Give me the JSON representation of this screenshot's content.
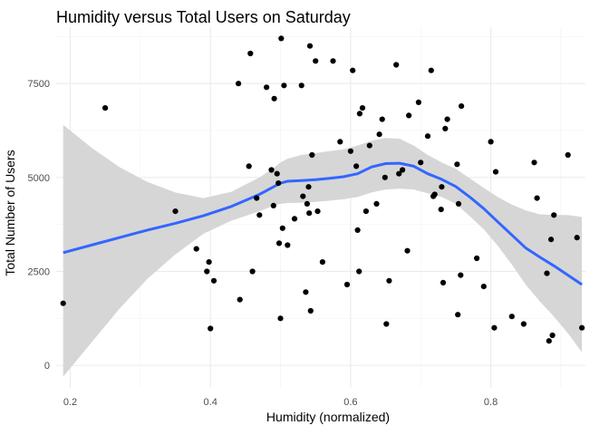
{
  "chart_data": {
    "type": "scatter",
    "title": "Humidity versus Total Users on Saturday",
    "xlabel": "Humidity (normalized)",
    "ylabel": "Total Number of Users",
    "xlim": [
      0.18,
      0.935
    ],
    "ylim": [
      -600,
      9000
    ],
    "x_ticks": [
      0.2,
      0.4,
      0.6,
      0.8
    ],
    "x_tick_labels": [
      "0.2",
      "0.4",
      "0.6",
      "0.8"
    ],
    "y_ticks": [
      0,
      2500,
      5000,
      7500
    ],
    "y_tick_labels": [
      "0",
      "2500",
      "5000",
      "7500"
    ],
    "x_minor_ticks": [
      0.3,
      0.5,
      0.7,
      0.9
    ],
    "y_minor_ticks": [
      1250,
      3750,
      6250,
      8750
    ],
    "grid": true,
    "legend": "none",
    "colors": {
      "points": "#000000",
      "smooth_line": "#3366ff",
      "confidence_band": "#d6d6d6",
      "grid_major": "#ebebeb",
      "grid_minor": "#f5f5f5"
    },
    "series": [
      {
        "kind": "points",
        "x": [
          0.19,
          0.25,
          0.35,
          0.38,
          0.395,
          0.398,
          0.4,
          0.405,
          0.44,
          0.442,
          0.455,
          0.457,
          0.46,
          0.466,
          0.47,
          0.48,
          0.487,
          0.49,
          0.491,
          0.495,
          0.497,
          0.498,
          0.5,
          0.501,
          0.503,
          0.505,
          0.51,
          0.52,
          0.53,
          0.532,
          0.536,
          0.538,
          0.54,
          0.541,
          0.542,
          0.543,
          0.545,
          0.55,
          0.553,
          0.56,
          0.575,
          0.585,
          0.595,
          0.6,
          0.603,
          0.608,
          0.61,
          0.612,
          0.613,
          0.617,
          0.622,
          0.627,
          0.637,
          0.641,
          0.645,
          0.649,
          0.651,
          0.655,
          0.665,
          0.669,
          0.674,
          0.681,
          0.683,
          0.697,
          0.7,
          0.71,
          0.715,
          0.718,
          0.72,
          0.729,
          0.73,
          0.732,
          0.735,
          0.738,
          0.752,
          0.753,
          0.754,
          0.757,
          0.758,
          0.78,
          0.79,
          0.8,
          0.805,
          0.807,
          0.83,
          0.847,
          0.862,
          0.866,
          0.88,
          0.883,
          0.886,
          0.888,
          0.89,
          0.91,
          0.923,
          0.93
        ],
        "y": [
          1650,
          6850,
          4100,
          3100,
          2500,
          2750,
          980,
          2250,
          7500,
          1750,
          5300,
          8300,
          2500,
          4450,
          4000,
          7400,
          5200,
          4250,
          7100,
          5100,
          4850,
          3250,
          1250,
          8700,
          3650,
          7450,
          3200,
          3900,
          7450,
          4500,
          1950,
          4300,
          4750,
          4050,
          8500,
          1450,
          5600,
          8100,
          4100,
          2750,
          8100,
          5950,
          2150,
          5700,
          7850,
          5300,
          3600,
          2500,
          6700,
          6850,
          4100,
          5850,
          4300,
          6150,
          6550,
          5000,
          1100,
          2250,
          8000,
          5100,
          5200,
          3050,
          6650,
          7000,
          5400,
          6100,
          7850,
          4500,
          4550,
          4150,
          4750,
          2200,
          6300,
          6550,
          5350,
          1350,
          4300,
          2400,
          6900,
          2850,
          2100,
          5950,
          1000,
          5150,
          1300,
          1100,
          5400,
          4450,
          2450,
          650,
          3350,
          800,
          4000,
          5600,
          3400,
          1000
        ]
      },
      {
        "kind": "smooth",
        "x": [
          0.19,
          0.23,
          0.27,
          0.31,
          0.35,
          0.39,
          0.43,
          0.47,
          0.49,
          0.5,
          0.51,
          0.53,
          0.55,
          0.57,
          0.59,
          0.61,
          0.63,
          0.65,
          0.67,
          0.69,
          0.71,
          0.73,
          0.75,
          0.77,
          0.79,
          0.81,
          0.83,
          0.85,
          0.87,
          0.89,
          0.91,
          0.93
        ],
        "y": [
          3000,
          3200,
          3400,
          3600,
          3780,
          3980,
          4230,
          4550,
          4750,
          4850,
          4900,
          4920,
          4940,
          4980,
          5020,
          5100,
          5280,
          5370,
          5380,
          5300,
          5100,
          4950,
          4760,
          4480,
          4170,
          3820,
          3470,
          3120,
          2880,
          2650,
          2400,
          2150
        ]
      },
      {
        "kind": "confidence_upper",
        "x": [
          0.19,
          0.23,
          0.27,
          0.31,
          0.35,
          0.39,
          0.43,
          0.47,
          0.49,
          0.5,
          0.51,
          0.53,
          0.55,
          0.57,
          0.59,
          0.61,
          0.63,
          0.65,
          0.67,
          0.69,
          0.71,
          0.73,
          0.75,
          0.77,
          0.79,
          0.81,
          0.83,
          0.85,
          0.87,
          0.89,
          0.91,
          0.93
        ],
        "y": [
          6400,
          5800,
          5280,
          4880,
          4600,
          4450,
          4620,
          5000,
          5250,
          5400,
          5500,
          5600,
          5650,
          5700,
          5750,
          5850,
          5980,
          6050,
          6030,
          5850,
          5600,
          5400,
          5230,
          4980,
          4720,
          4480,
          4280,
          4120,
          4020,
          4000,
          4000,
          3950
        ]
      },
      {
        "kind": "confidence_lower",
        "x": [
          0.19,
          0.23,
          0.27,
          0.31,
          0.35,
          0.39,
          0.43,
          0.47,
          0.49,
          0.5,
          0.51,
          0.53,
          0.55,
          0.57,
          0.59,
          0.61,
          0.63,
          0.65,
          0.67,
          0.69,
          0.71,
          0.73,
          0.75,
          0.77,
          0.79,
          0.81,
          0.83,
          0.85,
          0.87,
          0.89,
          0.91,
          0.93
        ],
        "y": [
          -300,
          600,
          1500,
          2300,
          2950,
          3500,
          3850,
          4100,
          4250,
          4300,
          4320,
          4330,
          4350,
          4380,
          4420,
          4480,
          4600,
          4680,
          4700,
          4680,
          4580,
          4480,
          4300,
          3970,
          3620,
          3180,
          2680,
          2140,
          1700,
          1300,
          850,
          350
        ]
      }
    ]
  }
}
